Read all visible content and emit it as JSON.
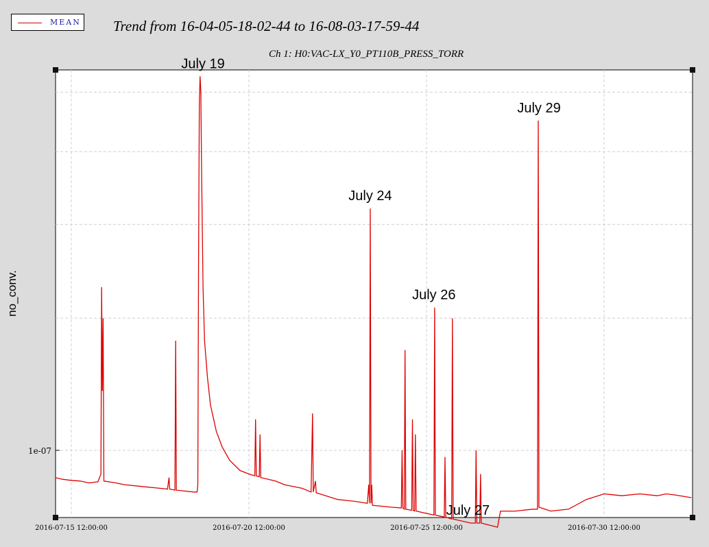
{
  "legend": {
    "label": "MEAN"
  },
  "colors": {
    "series": "#dd0000",
    "grid": "#cfcfcf",
    "background": "#dcdcdc",
    "plot_bg": "#ffffff"
  },
  "chart_data": {
    "type": "line",
    "title": "Trend from 16-04-05-18-02-44 to 16-08-03-17-59-44",
    "subtitle": "Ch 1: H0:VAC-LX_Y0_PT110B_PRESS_TORR",
    "xlabel": "",
    "ylabel": "no_conv.",
    "y_scale": "log",
    "y_ticks": [
      {
        "value": 1e-07,
        "label": "1e-07"
      }
    ],
    "x_ticks": [
      {
        "value": "2016-07-15 12:00:00",
        "label": "2016-07-15 12:00:00"
      },
      {
        "value": "2016-07-20 12:00:00",
        "label": "2016-07-20 12:00:00"
      },
      {
        "value": "2016-07-25 12:00:00",
        "label": "2016-07-25 12:00:00"
      },
      {
        "value": "2016-07-30 12:00:00",
        "label": "2016-07-30 12:00:00"
      }
    ],
    "grid": true,
    "legend_position": "top-left",
    "annotations": [
      {
        "text": "July 19",
        "x": "2016-07-19 05:00"
      },
      {
        "text": "July 24",
        "x": "2016-07-23 22:00"
      },
      {
        "text": "July 26",
        "x": "2016-07-25 17:00"
      },
      {
        "text": "July 27",
        "x": "2016-07-26 16:00"
      },
      {
        "text": "July 29",
        "x": "2016-07-28 16:00"
      }
    ],
    "series": [
      {
        "name": "MEAN",
        "points": [
          [
            "2016-07-15 01:00",
            9.2e-08
          ],
          [
            "2016-07-15 06:00",
            9.15e-08
          ],
          [
            "2016-07-15 12:00",
            9.12e-08
          ],
          [
            "2016-07-15 18:00",
            9.1e-08
          ],
          [
            "2016-07-16 00:00",
            9.05e-08
          ],
          [
            "2016-07-16 06:00",
            9.08e-08
          ],
          [
            "2016-07-16 08:00",
            9.3e-08
          ],
          [
            "2016-07-16 08:30",
            1.65e-07
          ],
          [
            "2016-07-16 09:00",
            1.2e-07
          ],
          [
            "2016-07-16 09:30",
            1.5e-07
          ],
          [
            "2016-07-16 10:00",
            9.1e-08
          ],
          [
            "2016-07-16 18:00",
            9.05e-08
          ],
          [
            "2016-07-17 00:00",
            9e-08
          ],
          [
            "2016-07-17 12:00",
            8.95e-08
          ],
          [
            "2016-07-18 00:00",
            8.9e-08
          ],
          [
            "2016-07-18 05:00",
            8.88e-08
          ],
          [
            "2016-07-18 06:00",
            9.2e-08
          ],
          [
            "2016-07-18 06:30",
            8.88e-08
          ],
          [
            "2016-07-18 10:00",
            8.85e-08
          ],
          [
            "2016-07-18 10:30",
            1.4e-07
          ],
          [
            "2016-07-18 11:00",
            8.85e-08
          ],
          [
            "2016-07-18 23:00",
            8.8e-08
          ],
          [
            "2016-07-19 01:00",
            8.8e-08
          ],
          [
            "2016-07-19 01:30",
            9e-08
          ],
          [
            "2016-07-19 02:00",
            1.8e-07
          ],
          [
            "2016-07-19 02:30",
            2.9e-07
          ],
          [
            "2016-07-19 03:00",
            3.15e-07
          ],
          [
            "2016-07-19 03:30",
            3e-07
          ],
          [
            "2016-07-19 04:00",
            2.4e-07
          ],
          [
            "2016-07-19 05:00",
            1.65e-07
          ],
          [
            "2016-07-19 06:00",
            1.4e-07
          ],
          [
            "2016-07-19 08:00",
            1.25e-07
          ],
          [
            "2016-07-19 10:00",
            1.15e-07
          ],
          [
            "2016-07-19 14:00",
            1.06e-07
          ],
          [
            "2016-07-19 18:00",
            1.01e-07
          ],
          [
            "2016-07-19 23:00",
            9.7e-08
          ],
          [
            "2016-07-20 06:00",
            9.4e-08
          ],
          [
            "2016-07-20 12:00",
            9.3e-08
          ],
          [
            "2016-07-20 16:00",
            9.25e-08
          ],
          [
            "2016-07-20 16:30",
            1.1e-07
          ],
          [
            "2016-07-20 17:00",
            9.25e-08
          ],
          [
            "2016-07-20 19:00",
            9.22e-08
          ],
          [
            "2016-07-20 19:30",
            1.05e-07
          ],
          [
            "2016-07-20 20:00",
            9.2e-08
          ],
          [
            "2016-07-21 06:00",
            9.1e-08
          ],
          [
            "2016-07-21 12:00",
            9e-08
          ],
          [
            "2016-07-22 00:00",
            8.9e-08
          ],
          [
            "2016-07-22 06:00",
            8.8e-08
          ],
          [
            "2016-07-22 07:00",
            1.12e-07
          ],
          [
            "2016-07-22 07:30",
            8.8e-08
          ],
          [
            "2016-07-22 09:00",
            9.1e-08
          ],
          [
            "2016-07-22 09:30",
            8.78e-08
          ],
          [
            "2016-07-23 00:00",
            8.6e-08
          ],
          [
            "2016-07-23 12:00",
            8.55e-08
          ],
          [
            "2016-07-23 20:00",
            8.5e-08
          ],
          [
            "2016-07-23 21:00",
            9e-08
          ],
          [
            "2016-07-23 21:30",
            8.5e-08
          ],
          [
            "2016-07-23 22:00",
            2.1e-07
          ],
          [
            "2016-07-23 22:30",
            8.5e-08
          ],
          [
            "2016-07-23 23:00",
            9e-08
          ],
          [
            "2016-07-23 23:30",
            8.45e-08
          ],
          [
            "2016-07-24 12:00",
            8.4e-08
          ],
          [
            "2016-07-24 19:00",
            8.38e-08
          ],
          [
            "2016-07-24 19:30",
            1e-07
          ],
          [
            "2016-07-24 20:00",
            8.38e-08
          ],
          [
            "2016-07-24 21:00",
            8.35e-08
          ],
          [
            "2016-07-24 21:30",
            1.36e-07
          ],
          [
            "2016-07-24 22:00",
            8.35e-08
          ],
          [
            "2016-07-25 02:00",
            8.32e-08
          ],
          [
            "2016-07-25 02:30",
            1.1e-07
          ],
          [
            "2016-07-25 03:00",
            8.32e-08
          ],
          [
            "2016-07-25 04:00",
            8.3e-08
          ],
          [
            "2016-07-25 04:30",
            1.05e-07
          ],
          [
            "2016-07-25 05:00",
            8.3e-08
          ],
          [
            "2016-07-25 17:00",
            8.2e-08
          ],
          [
            "2016-07-25 17:30",
            1.55e-07
          ],
          [
            "2016-07-25 18:00",
            8.2e-08
          ],
          [
            "2016-07-26 00:00",
            8.15e-08
          ],
          [
            "2016-07-26 00:30",
            9.8e-08
          ],
          [
            "2016-07-26 01:00",
            8.15e-08
          ],
          [
            "2016-07-26 05:00",
            8.1e-08
          ],
          [
            "2016-07-26 05:30",
            1.5e-07
          ],
          [
            "2016-07-26 06:00",
            8.1e-08
          ],
          [
            "2016-07-26 18:00",
            8e-08
          ],
          [
            "2016-07-26 21:00",
            8e-08
          ],
          [
            "2016-07-26 21:30",
            1e-07
          ],
          [
            "2016-07-26 22:00",
            8e-08
          ],
          [
            "2016-07-27 00:00",
            8e-08
          ],
          [
            "2016-07-27 00:30",
            9.3e-08
          ],
          [
            "2016-07-27 01:00",
            8e-08
          ],
          [
            "2016-07-27 12:00",
            7.9e-08
          ],
          [
            "2016-07-27 14:00",
            8.3e-08
          ],
          [
            "2016-07-28 00:00",
            8.3e-08
          ],
          [
            "2016-07-28 12:00",
            8.35e-08
          ],
          [
            "2016-07-28 15:00",
            8.35e-08
          ],
          [
            "2016-07-28 15:30",
            2.75e-07
          ],
          [
            "2016-07-28 16:00",
            8.4e-08
          ],
          [
            "2016-07-29 00:00",
            8.3e-08
          ],
          [
            "2016-07-29 12:00",
            8.35e-08
          ],
          [
            "2016-07-30 00:00",
            8.6e-08
          ],
          [
            "2016-07-30 12:00",
            8.75e-08
          ],
          [
            "2016-07-31 00:00",
            8.7e-08
          ],
          [
            "2016-07-31 12:00",
            8.75e-08
          ],
          [
            "2016-08-01 00:00",
            8.7e-08
          ],
          [
            "2016-08-01 06:00",
            8.75e-08
          ],
          [
            "2016-08-01 12:00",
            8.72e-08
          ],
          [
            "2016-08-01 23:00",
            8.65e-08
          ]
        ]
      }
    ]
  }
}
